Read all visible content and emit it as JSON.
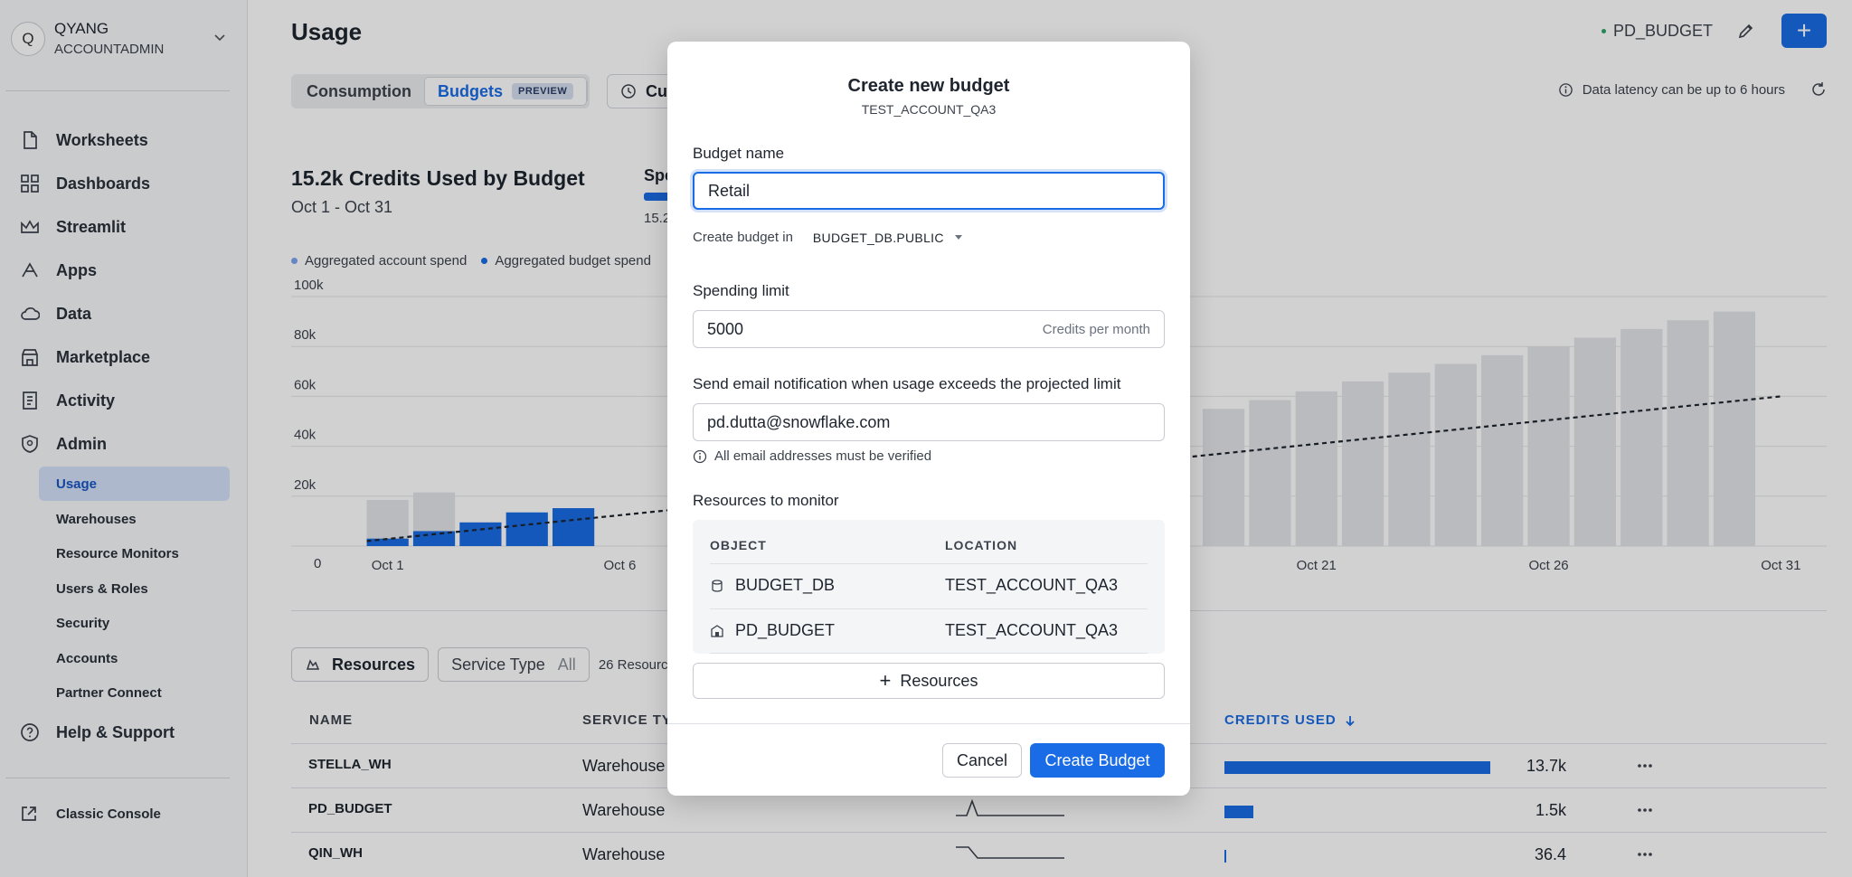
{
  "sidebar": {
    "account": {
      "initial": "Q",
      "name": "QYANG",
      "role": "ACCOUNTADMIN"
    },
    "nav": [
      {
        "label": "Worksheets",
        "icon": "file-icon"
      },
      {
        "label": "Dashboards",
        "icon": "grid-icon"
      },
      {
        "label": "Streamlit",
        "icon": "crown-icon"
      },
      {
        "label": "Apps",
        "icon": "apps-icon"
      },
      {
        "label": "Data",
        "icon": "cloud-icon"
      },
      {
        "label": "Marketplace",
        "icon": "store-icon"
      },
      {
        "label": "Activity",
        "icon": "activity-icon"
      },
      {
        "label": "Admin",
        "icon": "shield-icon"
      }
    ],
    "admin_items": [
      "Usage",
      "Warehouses",
      "Resource Monitors",
      "Users & Roles",
      "Security",
      "Accounts",
      "Partner Connect"
    ],
    "help": "Help & Support",
    "classic": "Classic Console"
  },
  "header": {
    "title": "Usage",
    "context": "PD_BUDGET",
    "tabs": {
      "consumption": "Consumption",
      "budgets": "Budgets",
      "preview": "PREVIEW"
    },
    "date_button": "Cu",
    "latency": "Data latency can be up to 6 hours"
  },
  "summary": {
    "title": "15.2k Credits Used by Budget",
    "range": "Oct 1 - Oct 31",
    "spend_label": "Spe",
    "spend_value": "15.2"
  },
  "legend": [
    "Aggregated account spend",
    "Aggregated budget spend"
  ],
  "chart_data": {
    "type": "bar",
    "y_ticks": [
      "0",
      "20k",
      "40k",
      "60k",
      "80k",
      "100k"
    ],
    "x_ticks": [
      "Oct 1",
      "Oct 6",
      "Oct 21",
      "Oct 26",
      "Oct 31"
    ],
    "ylim": [
      0,
      100000
    ],
    "actual_values": [
      3000,
      6000,
      9500,
      13500,
      15200
    ],
    "forecast_values": [
      18500,
      21500,
      null,
      null,
      null,
      null,
      null,
      null,
      null,
      null,
      null,
      null,
      null,
      null,
      null,
      null,
      null,
      null,
      55000,
      58500,
      62000,
      66000,
      69500,
      73000,
      76500,
      80000,
      83500,
      87000,
      90500,
      94000
    ],
    "trend_line": [
      {
        "x": 1,
        "y": 2000
      },
      {
        "x": 31,
        "y": 60000
      }
    ],
    "colors": {
      "actual": "#1a6ce6",
      "forecast": "#e2e4e8",
      "trend": "#1e252f"
    }
  },
  "resources": {
    "button": "Resources",
    "service_type": "Service Type",
    "service_all": "All",
    "count": "26 Resource",
    "columns": {
      "name": "NAME",
      "service": "SERVICE TY",
      "credits": "CREDITS USED"
    },
    "rows": [
      {
        "name": "STELLA_WH",
        "service": "Warehouse",
        "fraction": 1.0,
        "value": "13.7k"
      },
      {
        "name": "PD_BUDGET",
        "service": "Warehouse",
        "fraction": 0.11,
        "value": "1.5k"
      },
      {
        "name": "QIN_WH",
        "service": "Warehouse",
        "fraction": 0.003,
        "value": "36.4"
      }
    ]
  },
  "modal": {
    "title": "Create new budget",
    "subtitle": "TEST_ACCOUNT_QA3",
    "budget_name_label": "Budget name",
    "budget_name_value": "Retail",
    "create_in_label": "Create budget in",
    "create_in_value": "BUDGET_DB.PUBLIC",
    "spending_label": "Spending limit",
    "spending_value": "5000",
    "spending_suffix": "Credits per month",
    "email_label": "Send email notification when usage exceeds the projected limit",
    "email_value": "pd.dutta@snowflake.com",
    "email_note": "All email addresses must be verified",
    "resources_label": "Resources to monitor",
    "res_columns": {
      "object": "OBJECT",
      "location": "LOCATION"
    },
    "res_rows": [
      {
        "object": "BUDGET_DB",
        "location": "TEST_ACCOUNT_QA3"
      },
      {
        "object": "PD_BUDGET",
        "location": "TEST_ACCOUNT_QA3"
      }
    ],
    "add_resources": "Resources",
    "cancel": "Cancel",
    "create": "Create Budget"
  }
}
